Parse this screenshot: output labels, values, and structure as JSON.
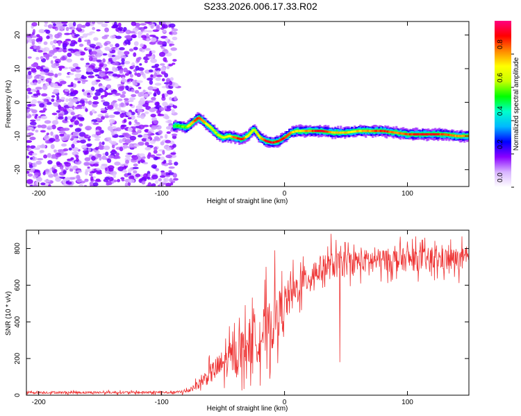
{
  "title": "S233.2026.006.17.33.R02",
  "chart_data": [
    {
      "type": "heatmap",
      "id": "spectrogram",
      "xlabel": "Height of straight line (km)",
      "ylabel": "Frequency (Hz)",
      "xlim": [
        -210,
        150
      ],
      "ylim": [
        -25,
        24
      ],
      "xticks": [
        -200,
        -100,
        0,
        100
      ],
      "xtick_labels": [
        "-200",
        "-100",
        "0",
        "100"
      ],
      "yticks": [
        -20,
        -10,
        0,
        10,
        20
      ],
      "ytick_labels": [
        "-20",
        "-10",
        "0",
        "10",
        "20"
      ],
      "noise_region_x": [
        -210,
        -89
      ],
      "signal_track": {
        "x": [
          -90,
          -85,
          -80,
          -75,
          -70,
          -65,
          -60,
          -55,
          -50,
          -45,
          -40,
          -35,
          -30,
          -25,
          -20,
          -15,
          -10,
          -5,
          0,
          5,
          10,
          20,
          30,
          40,
          50,
          60,
          70,
          80,
          90,
          100,
          110,
          120,
          130,
          140,
          150
        ],
        "freq": [
          -7,
          -7,
          -7.5,
          -6,
          -4.5,
          -6,
          -7.5,
          -9.5,
          -10.5,
          -10,
          -10.5,
          -11,
          -10,
          -8,
          -10.5,
          -11.5,
          -12,
          -11.5,
          -10.5,
          -9,
          -8.5,
          -8.5,
          -8.5,
          -9,
          -9,
          -8.5,
          -8.5,
          -8.5,
          -9,
          -9.5,
          -9.5,
          -9.5,
          -9.5,
          -10,
          -10
        ],
        "peak_amplitude": [
          0.55,
          0.6,
          0.65,
          0.85,
          0.95,
          0.8,
          0.7,
          0.65,
          0.7,
          0.75,
          0.9,
          0.95,
          0.75,
          0.7,
          0.8,
          0.95,
          1.0,
          0.9,
          0.95,
          0.85,
          0.75,
          0.85,
          1.0,
          0.8,
          0.8,
          0.8,
          0.85,
          0.95,
          0.85,
          0.9,
          0.95,
          0.95,
          0.9,
          0.85,
          0.8
        ]
      },
      "colorbar": {
        "label": "Normalized spectral amplitude",
        "range": [
          0,
          1
        ],
        "ticks": [
          0.0,
          0.2,
          0.4,
          0.6,
          0.8
        ],
        "tick_labels": [
          "0.0",
          "0.2",
          "0.4",
          "0.6",
          "0.8"
        ],
        "colormap_stops": [
          "#ffffff",
          "#d8b4ff",
          "#8a00ff",
          "#0000ff",
          "#00b8ff",
          "#00ffcc",
          "#00ff00",
          "#c8ff00",
          "#ffff00",
          "#ff8800",
          "#ff0000",
          "#ff0080"
        ]
      }
    },
    {
      "type": "line",
      "id": "snr",
      "xlabel": "Height of straight line (km)",
      "ylabel": "SNR (10 * v/v)",
      "xlim": [
        -210,
        150
      ],
      "ylim": [
        0,
        900
      ],
      "xticks": [
        -200,
        -100,
        0,
        100
      ],
      "xtick_labels": [
        "-200",
        "-100",
        "0",
        "100"
      ],
      "yticks": [
        0,
        200,
        400,
        600,
        800
      ],
      "ytick_labels": [
        "0",
        "200",
        "400",
        "600",
        "800"
      ],
      "line_color": "#ee3333",
      "envelope": {
        "x": [
          -210,
          -90,
          -80,
          -70,
          -60,
          -50,
          -40,
          -30,
          -20,
          -10,
          0,
          10,
          20,
          30,
          40,
          50,
          60,
          80,
          100,
          120,
          150
        ],
        "baseline": [
          15,
          15,
          20,
          60,
          120,
          170,
          220,
          280,
          330,
          380,
          500,
          580,
          650,
          690,
          710,
          720,
          730,
          735,
          740,
          740,
          740
        ],
        "spread": [
          8,
          8,
          15,
          30,
          70,
          100,
          130,
          160,
          180,
          180,
          140,
          110,
          100,
          90,
          90,
          85,
          80,
          80,
          80,
          80,
          80
        ]
      },
      "notable_spikes": [
        {
          "x": -15,
          "y": 700
        },
        {
          "x": -8,
          "y": 790
        },
        {
          "x": 45,
          "y": 180
        },
        {
          "x": 38,
          "y": 880
        }
      ]
    }
  ]
}
